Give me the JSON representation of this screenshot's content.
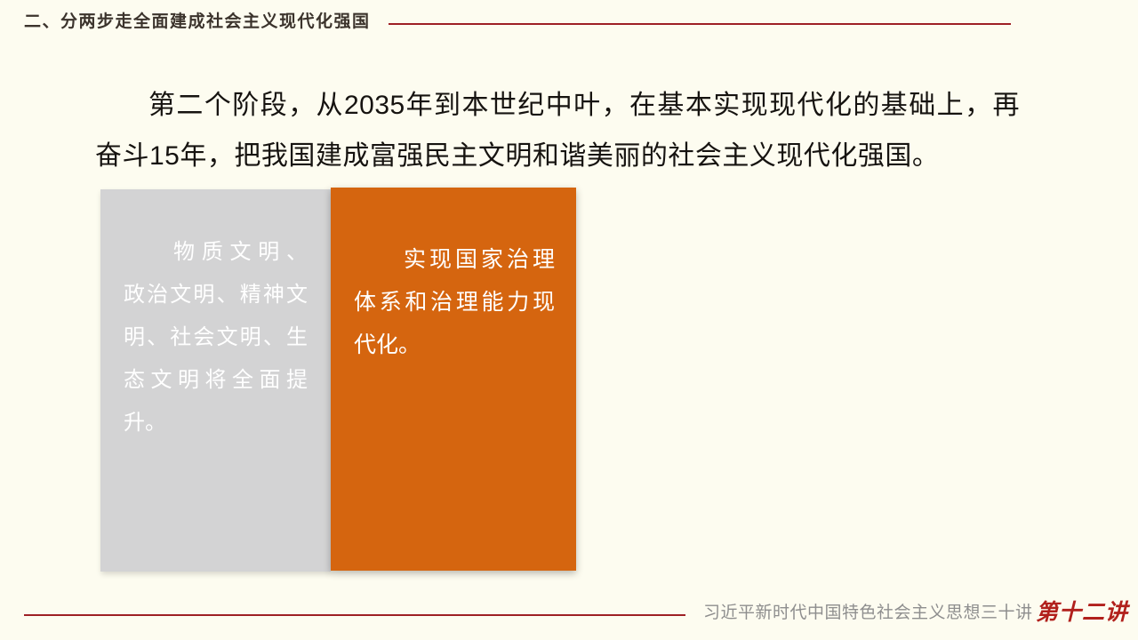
{
  "slide": {
    "background_color": "#FDFCF0",
    "accent_line_color": "#9E2025"
  },
  "header": {
    "title": "二、分两步走全面建成社会主义现代化强国",
    "text_color": "#3B332C"
  },
  "body": {
    "paragraph": "第二个阶段，从2035年到本世纪中叶，在基本实现现代化的基础上，再奋斗15年，把我国建成富强民主文明和谐美丽的社会主义现代化强国。"
  },
  "cards": {
    "gray": {
      "background_color": "#D3D3D4",
      "text_color": "#FFFFFF",
      "lines": [
        "物质文明、",
        "政治文明、精神文",
        "明、社会文明、生",
        "态文明将全面提",
        "升。"
      ]
    },
    "orange": {
      "background_color": "#D5650F",
      "text_color": "#FFFFFF",
      "lines": [
        "实现国家治理",
        "体系和治理能力现",
        "代化。"
      ]
    }
  },
  "footer": {
    "series_title": "习近平新时代中国特色社会主义思想三十讲",
    "series_title_color": "#8E8E8E",
    "lecture_label": "第十二讲",
    "lecture_label_color": "#B1201C"
  }
}
